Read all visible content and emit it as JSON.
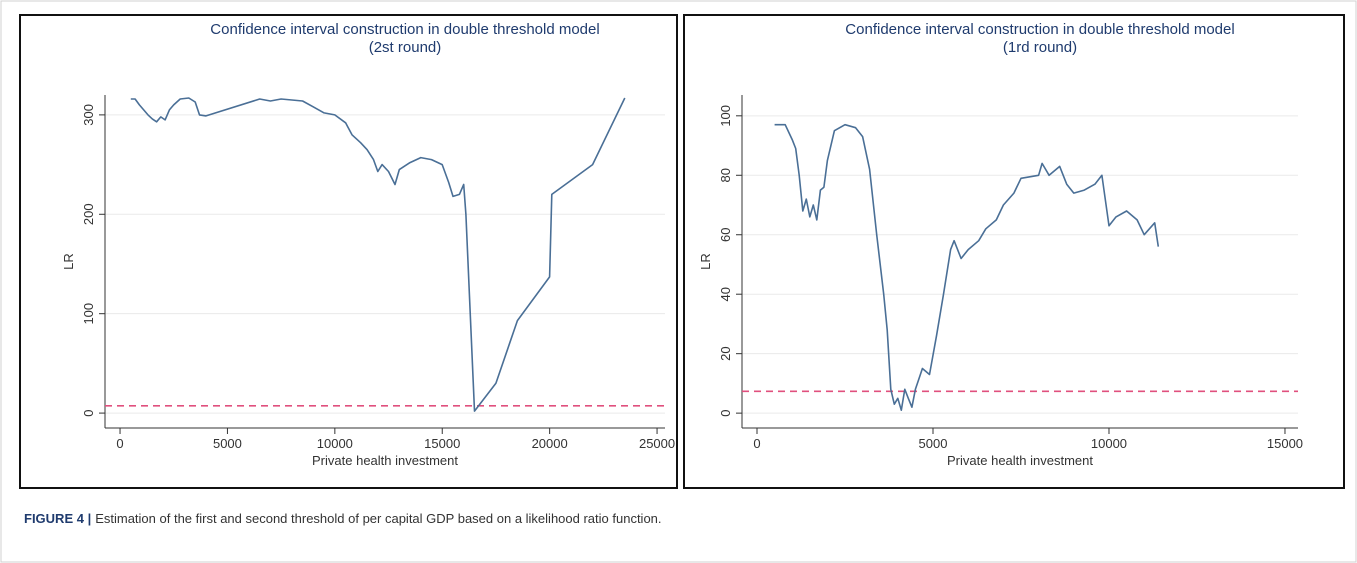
{
  "chart_data": [
    {
      "type": "line",
      "title": "Confidence interval construction in double threshold model",
      "subtitle": "(2st round)",
      "x_label": "Private health investment",
      "y_label": "LR",
      "color": "#4a6f96",
      "grid": true,
      "threshold": 7.35,
      "threshold_color": "#e0507e",
      "xlim": [
        -700,
        25370
      ],
      "ylim": [
        -15,
        320
      ],
      "xticks": [
        0,
        5000,
        10000,
        15000,
        20000,
        25000
      ],
      "yticks": [
        0,
        100,
        200,
        300
      ],
      "x": [
        500,
        700,
        900,
        1100,
        1300,
        1500,
        1700,
        1900,
        2100,
        2300,
        2500,
        2800,
        3200,
        3500,
        3700,
        4000,
        6500,
        7000,
        7500,
        8000,
        8500,
        9000,
        9500,
        10000,
        10500,
        10800,
        11200,
        11500,
        11800,
        12000,
        12200,
        12500,
        12800,
        13000,
        13500,
        14000,
        14500,
        15000,
        15300,
        15500,
        15800,
        16000,
        16100,
        16500,
        17500,
        18500,
        20000,
        20100,
        22000,
        23500
      ],
      "values": [
        316,
        316,
        310,
        305,
        300,
        296,
        293,
        298,
        295,
        305,
        310,
        316,
        317,
        313,
        300,
        299,
        316,
        314,
        316,
        315,
        314,
        308,
        302,
        300,
        292,
        280,
        272,
        265,
        255,
        243,
        250,
        243,
        230,
        245,
        252,
        257,
        255,
        250,
        232,
        218,
        220,
        230,
        200,
        2,
        30,
        93,
        137,
        220,
        250,
        317
      ]
    },
    {
      "type": "line",
      "title": "Confidence interval construction in double threshold model",
      "subtitle": "(1rd round)",
      "x_label": "Private health investment",
      "y_label": "LR",
      "color": "#4a6f96",
      "grid": true,
      "threshold": 7.35,
      "threshold_color": "#e0507e",
      "xlim": [
        -426,
        15370
      ],
      "ylim": [
        -5,
        107
      ],
      "xticks": [
        0,
        5000,
        10000,
        15000
      ],
      "yticks": [
        0,
        20,
        40,
        60,
        80,
        100
      ],
      "x": [
        500,
        800,
        1000,
        1100,
        1200,
        1300,
        1400,
        1500,
        1600,
        1700,
        1800,
        1900,
        2000,
        2200,
        2500,
        2800,
        3000,
        3200,
        3400,
        3600,
        3700,
        3800,
        3900,
        4000,
        4100,
        4200,
        4300,
        4400,
        4500,
        4700,
        4900,
        5100,
        5300,
        5500,
        5600,
        5800,
        6000,
        6300,
        6500,
        6800,
        7000,
        7300,
        7500,
        8000,
        8100,
        8300,
        8600,
        8800,
        9000,
        9300,
        9600,
        9800,
        10000,
        10200,
        10500,
        10800,
        11000,
        11300,
        11400
      ],
      "values": [
        97,
        97,
        92,
        89,
        80,
        68,
        72,
        66,
        70,
        65,
        75,
        76,
        85,
        95,
        97,
        96,
        93,
        82,
        60,
        40,
        28,
        8,
        3,
        5,
        1,
        8,
        5,
        2,
        8,
        15,
        13,
        26,
        40,
        55,
        58,
        52,
        55,
        58,
        62,
        65,
        70,
        74,
        79,
        80,
        84,
        80,
        83,
        77,
        74,
        75,
        77,
        80,
        63,
        66,
        68,
        65,
        60,
        64,
        56
      ]
    }
  ],
  "caption": {
    "label": "FIGURE 4 |",
    "text": "Estimation of the first and second threshold of per capital GDP based on a likelihood ratio function."
  }
}
